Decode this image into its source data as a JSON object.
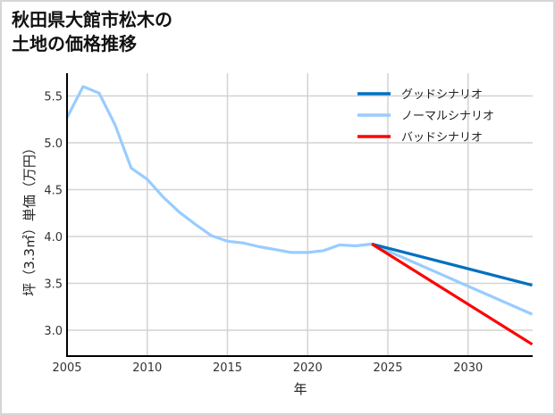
{
  "title": {
    "line1": "秋田県大館市松木の",
    "line2": "土地の価格推移"
  },
  "chart_data": {
    "type": "line",
    "title": "秋田県大館市松木の土地の価格推移",
    "xlabel": "年",
    "ylabel": "坪（3.3㎡）単価（万円）",
    "xlim": [
      2005,
      2034
    ],
    "ylim": [
      2.72,
      5.72
    ],
    "xticks": [
      "2005",
      "2010",
      "2015",
      "2020",
      "2025",
      "2030"
    ],
    "yticks": [
      "3.0",
      "3.5",
      "4.0",
      "4.5",
      "5.0",
      "5.5"
    ],
    "grid": true,
    "legend_position": "upper right",
    "series": [
      {
        "name": "グッドシナリオ",
        "color": "#0070c0",
        "x": [
          2024,
          2034
        ],
        "values": [
          3.92,
          3.48
        ]
      },
      {
        "name": "ノーマルシナリオ",
        "color": "#99ccff",
        "x": [
          2005,
          2006,
          2007,
          2008,
          2009,
          2010,
          2011,
          2012,
          2013,
          2014,
          2015,
          2016,
          2017,
          2018,
          2019,
          2020,
          2021,
          2022,
          2023,
          2024,
          2034
        ],
        "values": [
          5.27,
          5.6,
          5.53,
          5.19,
          4.73,
          4.61,
          4.42,
          4.26,
          4.13,
          4.01,
          3.95,
          3.93,
          3.89,
          3.86,
          3.83,
          3.83,
          3.85,
          3.91,
          3.9,
          3.92,
          3.17
        ]
      },
      {
        "name": "バッドシナリオ",
        "color": "#ff0000",
        "x": [
          2024,
          2034
        ],
        "values": [
          3.92,
          2.85
        ]
      }
    ]
  }
}
